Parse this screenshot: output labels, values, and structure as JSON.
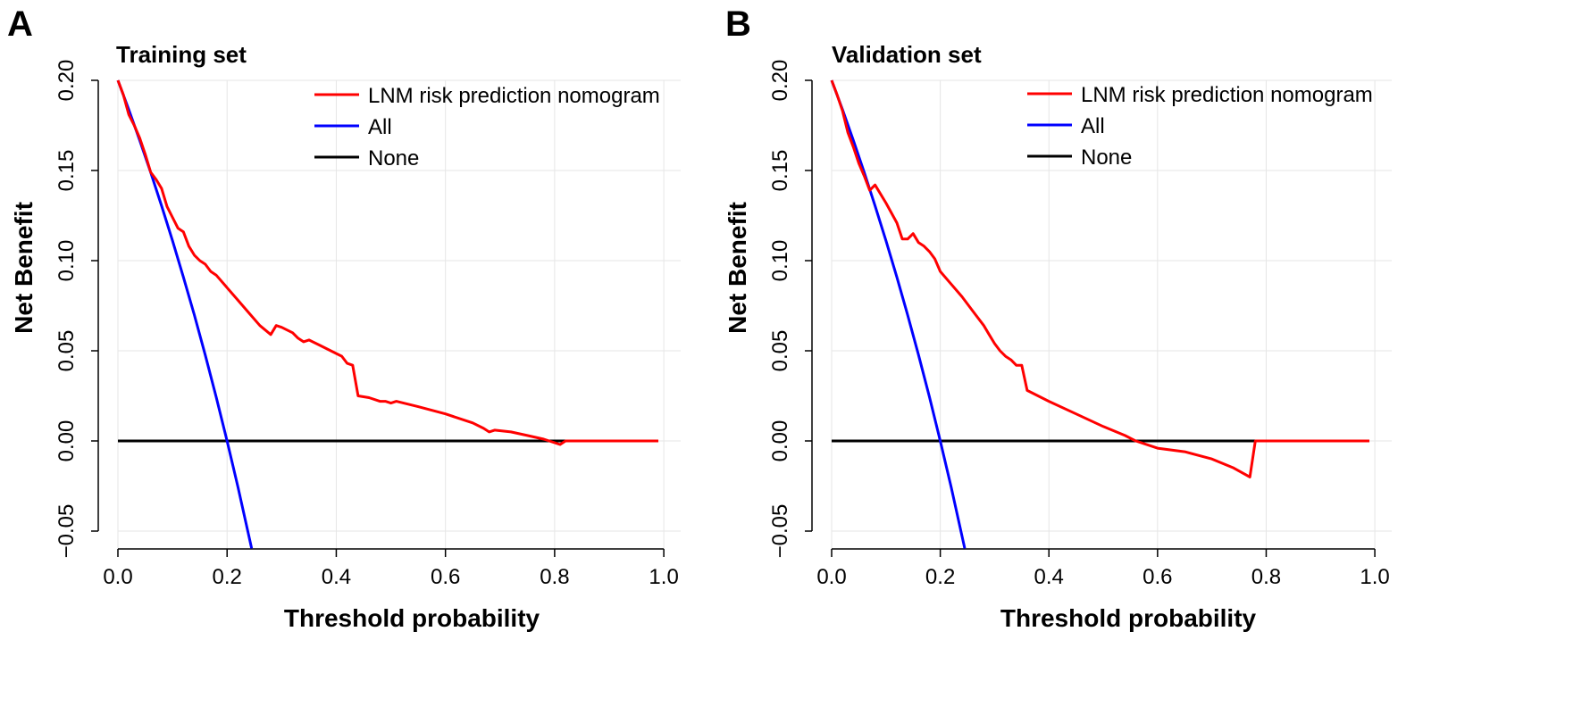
{
  "colors": {
    "model": "#ff0000",
    "all": "#0000ff",
    "none": "#000000",
    "grid": "#e6e6e6"
  },
  "chart_data": [
    {
      "type": "line",
      "panel": "A",
      "title": "Training set",
      "xlabel": "Threshold probability",
      "ylabel": "Net Benefit",
      "xlim": [
        0,
        1
      ],
      "ylim": [
        -0.06,
        0.2
      ],
      "xticks": [
        0,
        0.2,
        0.4,
        0.6,
        0.8,
        1.0
      ],
      "xtick_labels": [
        "0.0",
        "0.2",
        "0.4",
        "0.6",
        "0.8",
        "1.0"
      ],
      "yticks": [
        -0.05,
        0,
        0.05,
        0.1,
        0.15,
        0.2
      ],
      "ytick_labels": [
        "−0.05",
        "0.00",
        "0.05",
        "0.10",
        "0.15",
        "0.20"
      ],
      "grid": true,
      "legend_position": "top-right",
      "series": [
        {
          "name": "LNM risk prediction nomogram",
          "color": "#ff0000",
          "x": [
            0,
            0.01,
            0.02,
            0.03,
            0.04,
            0.05,
            0.06,
            0.07,
            0.08,
            0.09,
            0.1,
            0.11,
            0.12,
            0.13,
            0.14,
            0.15,
            0.16,
            0.17,
            0.18,
            0.2,
            0.22,
            0.24,
            0.26,
            0.28,
            0.29,
            0.3,
            0.32,
            0.33,
            0.34,
            0.35,
            0.37,
            0.39,
            0.41,
            0.42,
            0.43,
            0.44,
            0.46,
            0.48,
            0.49,
            0.5,
            0.51,
            0.55,
            0.6,
            0.65,
            0.67,
            0.68,
            0.69,
            0.72,
            0.75,
            0.78,
            0.81,
            0.82,
            0.83,
            0.9,
            0.99
          ],
          "y": [
            0.2,
            0.192,
            0.181,
            0.175,
            0.168,
            0.159,
            0.149,
            0.145,
            0.14,
            0.13,
            0.124,
            0.118,
            0.116,
            0.108,
            0.103,
            0.1,
            0.098,
            0.094,
            0.092,
            0.085,
            0.078,
            0.071,
            0.064,
            0.059,
            0.064,
            0.063,
            0.06,
            0.057,
            0.055,
            0.056,
            0.053,
            0.05,
            0.047,
            0.043,
            0.042,
            0.025,
            0.024,
            0.022,
            0.022,
            0.021,
            0.022,
            0.019,
            0.015,
            0.01,
            0.007,
            0.005,
            0.006,
            0.005,
            0.003,
            0.001,
            -0.002,
            0,
            0,
            0,
            0
          ]
        },
        {
          "name": "All",
          "color": "#0000ff",
          "x": [
            0,
            0.02,
            0.04,
            0.06,
            0.08,
            0.1,
            0.12,
            0.14,
            0.16,
            0.18,
            0.2,
            0.22,
            0.245
          ],
          "y": [
            0.2,
            0.1837,
            0.1667,
            0.1489,
            0.1304,
            0.1111,
            0.0909,
            0.0698,
            0.0476,
            0.0244,
            0,
            -0.0256,
            -0.0596
          ]
        },
        {
          "name": "None",
          "color": "#000000",
          "x": [
            0,
            0.99
          ],
          "y": [
            0,
            0
          ]
        }
      ]
    },
    {
      "type": "line",
      "panel": "B",
      "title": "Validation set",
      "xlabel": "Threshold probability",
      "ylabel": "Net Benefit",
      "xlim": [
        0,
        1
      ],
      "ylim": [
        -0.06,
        0.2
      ],
      "xticks": [
        0,
        0.2,
        0.4,
        0.6,
        0.8,
        1.0
      ],
      "xtick_labels": [
        "0.0",
        "0.2",
        "0.4",
        "0.6",
        "0.8",
        "1.0"
      ],
      "yticks": [
        -0.05,
        0,
        0.05,
        0.1,
        0.15,
        0.2
      ],
      "ytick_labels": [
        "−0.05",
        "0.00",
        "0.05",
        "0.10",
        "0.15",
        "0.20"
      ],
      "grid": true,
      "legend_position": "top-right",
      "series": [
        {
          "name": "LNM risk prediction nomogram",
          "color": "#ff0000",
          "x": [
            0,
            0.01,
            0.02,
            0.03,
            0.04,
            0.05,
            0.06,
            0.07,
            0.08,
            0.1,
            0.12,
            0.13,
            0.14,
            0.15,
            0.16,
            0.17,
            0.18,
            0.19,
            0.2,
            0.22,
            0.24,
            0.26,
            0.28,
            0.29,
            0.3,
            0.31,
            0.32,
            0.33,
            0.34,
            0.35,
            0.36,
            0.4,
            0.45,
            0.5,
            0.54,
            0.56,
            0.6,
            0.65,
            0.7,
            0.74,
            0.77,
            0.78,
            0.85,
            0.99
          ],
          "y": [
            0.2,
            0.192,
            0.183,
            0.171,
            0.163,
            0.154,
            0.147,
            0.139,
            0.142,
            0.132,
            0.121,
            0.112,
            0.112,
            0.115,
            0.11,
            0.108,
            0.105,
            0.101,
            0.094,
            0.087,
            0.08,
            0.072,
            0.064,
            0.059,
            0.054,
            0.05,
            0.047,
            0.045,
            0.042,
            0.042,
            0.028,
            0.022,
            0.015,
            0.008,
            0.003,
            0,
            -0.004,
            -0.006,
            -0.01,
            -0.015,
            -0.02,
            0,
            0,
            0
          ]
        },
        {
          "name": "All",
          "color": "#0000ff",
          "x": [
            0,
            0.02,
            0.04,
            0.06,
            0.08,
            0.1,
            0.12,
            0.14,
            0.16,
            0.18,
            0.2,
            0.22,
            0.245
          ],
          "y": [
            0.2,
            0.1837,
            0.1667,
            0.1489,
            0.1304,
            0.1111,
            0.0909,
            0.0698,
            0.0476,
            0.0244,
            0,
            -0.0256,
            -0.0596
          ]
        },
        {
          "name": "None",
          "color": "#000000",
          "x": [
            0,
            0.99
          ],
          "y": [
            0,
            0
          ]
        }
      ]
    }
  ]
}
